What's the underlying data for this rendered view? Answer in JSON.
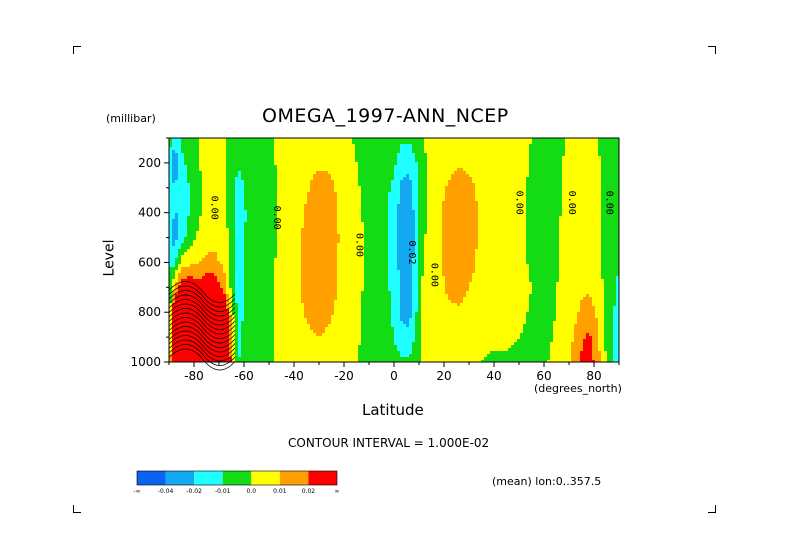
{
  "chart_data": {
    "type": "heatmap",
    "title": "OMEGA_1997-ANN_NCEP",
    "ylabel": "Level",
    "yunits": "(millibar)",
    "xlabel": "Latitude",
    "xunits": "(degrees_north)",
    "xlim": [
      -90,
      90
    ],
    "ylim": [
      1000,
      100
    ],
    "y_axis_reversed": true,
    "x_ticks": [
      "-80",
      "-60",
      "-40",
      "-20",
      "0",
      "20",
      "40",
      "60",
      "80"
    ],
    "x_tick_values": [
      -80,
      -60,
      -40,
      -20,
      0,
      20,
      40,
      60,
      80
    ],
    "y_ticks": [
      "200",
      "400",
      "600",
      "800",
      "1000"
    ],
    "y_tick_values": [
      200,
      400,
      600,
      800,
      1000
    ],
    "contour_interval": "CONTOUR INTERVAL = 1.000E-02",
    "averaging_note": "(mean) lon:0..357.5",
    "colorbar": {
      "labels": [
        "-∞",
        "-0.04",
        "-0.02",
        "-0.01",
        "0.0",
        "0.01",
        "0.02",
        "∞"
      ],
      "colors": [
        "#0a64f0",
        "#13a8f0",
        "#20ffff",
        "#14dc14",
        "#ffff00",
        "#ffa000",
        "#ff0000"
      ]
    },
    "contour_labels": [
      {
        "text": "0.00",
        "lat": -73,
        "level": 380
      },
      {
        "text": "0.00",
        "lat": -48,
        "level": 420
      },
      {
        "text": "0.00",
        "lat": -15,
        "level": 530
      },
      {
        "text": "0.02",
        "lat": 6,
        "level": 560
      },
      {
        "text": "0.00",
        "lat": 15,
        "level": 650
      },
      {
        "text": "0.00",
        "lat": 49,
        "level": 360
      },
      {
        "text": "0.00",
        "lat": 70,
        "level": 360
      },
      {
        "text": "0.00",
        "lat": 85,
        "level": 360
      }
    ],
    "field_lat": [
      -90,
      -88,
      -85,
      -82,
      -78,
      -75,
      -72,
      -68,
      -65,
      -62,
      -58,
      -55,
      -50,
      -45,
      -40,
      -35,
      -30,
      -25,
      -20,
      -15,
      -10,
      -5,
      0,
      3,
      6,
      9,
      12,
      15,
      18,
      22,
      26,
      30,
      35,
      40,
      45,
      50,
      55,
      60,
      65,
      70,
      75,
      78,
      81,
      84,
      87,
      90
    ],
    "field_levels": [
      100,
      200,
      300,
      400,
      500,
      600,
      700,
      800,
      900,
      1000
    ],
    "field_values": [
      [
        -0.005,
        -0.007,
        -0.007,
        -0.01,
        -0.01,
        -0.01,
        -0.01,
        -0.01,
        -0.01,
        -0.01
      ],
      [
        -0.015,
        -0.03,
        -0.02,
        -0.02,
        -0.025,
        -0.015,
        0.01,
        0.03,
        0.05,
        0.06
      ],
      [
        -0.008,
        -0.012,
        -0.015,
        -0.02,
        -0.015,
        0.005,
        0.025,
        0.05,
        0.07,
        0.09
      ],
      [
        -0.005,
        -0.008,
        -0.01,
        -0.01,
        -0.005,
        0.007,
        0.03,
        0.06,
        0.08,
        0.1
      ],
      [
        0,
        -0.001,
        -0.002,
        -0.002,
        0.002,
        0.01,
        0.025,
        0.06,
        0.08,
        0.09
      ],
      [
        0.005,
        0.005,
        0.006,
        0.006,
        0.006,
        0.012,
        0.03,
        0.05,
        0.07,
        0.09
      ],
      [
        0.003,
        0.004,
        0.005,
        0.006,
        0.008,
        0.012,
        0.03,
        0.05,
        0.06,
        0.07
      ],
      [
        0.001,
        0.002,
        0.004,
        0.004,
        0.006,
        0.008,
        0.015,
        0.035,
        0.05,
        0.06
      ],
      [
        -0.003,
        -0.004,
        -0.006,
        -0.006,
        -0.006,
        -0.005,
        -0.003,
        0.005,
        0.01,
        0.015
      ],
      [
        -0.004,
        -0.008,
        -0.015,
        -0.02,
        -0.02,
        -0.02,
        -0.018,
        -0.015,
        -0.012,
        -0.01
      ],
      [
        -0.005,
        -0.005,
        -0.005,
        -0.005,
        -0.004,
        -0.003,
        -0.003,
        -0.003,
        -0.003,
        -0.003
      ],
      [
        -0.003,
        -0.003,
        -0.003,
        -0.002,
        -0.002,
        -0.002,
        -0.002,
        -0.003,
        -0.002,
        -0.001
      ],
      [
        -0.002,
        -0.002,
        -0.003,
        -0.003,
        -0.003,
        -0.003,
        -0.003,
        -0.003,
        -0.003,
        -0.001
      ],
      [
        0.003,
        0.002,
        0.001,
        0.001,
        0.002,
        0.003,
        0.003,
        0.003,
        0.003,
        0.002
      ],
      [
        0.007,
        0.006,
        0.005,
        0.006,
        0.007,
        0.007,
        0.007,
        0.007,
        0.006,
        0.005
      ],
      [
        0.009,
        0.008,
        0.009,
        0.011,
        0.012,
        0.012,
        0.012,
        0.011,
        0.008,
        0.006
      ],
      [
        0.009,
        0.009,
        0.013,
        0.017,
        0.019,
        0.019,
        0.018,
        0.016,
        0.01,
        0.006
      ],
      [
        0.008,
        0.009,
        0.011,
        0.013,
        0.014,
        0.013,
        0.013,
        0.011,
        0.007,
        0.005
      ],
      [
        0.005,
        0.006,
        0.007,
        0.007,
        0.007,
        0.007,
        0.006,
        0.006,
        0.004,
        0.003
      ],
      [
        -0.002,
        0,
        0.001,
        0.002,
        0.003,
        0.003,
        0.002,
        0.001,
        0.001,
        0
      ],
      [
        -0.003,
        -0.003,
        -0.003,
        -0.003,
        -0.002,
        -0.002,
        -0.002,
        -0.002,
        -0.002,
        -0.002
      ],
      [
        -0.003,
        -0.004,
        -0.005,
        -0.006,
        -0.006,
        -0.005,
        -0.005,
        -0.004,
        -0.003,
        -0.002
      ],
      [
        -0.005,
        -0.008,
        -0.012,
        -0.015,
        -0.014,
        -0.013,
        -0.013,
        -0.012,
        -0.01,
        -0.006
      ],
      [
        -0.008,
        -0.015,
        -0.022,
        -0.025,
        -0.026,
        -0.025,
        -0.024,
        -0.022,
        -0.017,
        -0.008
      ],
      [
        -0.008,
        -0.018,
        -0.024,
        -0.028,
        -0.03,
        -0.028,
        -0.026,
        -0.024,
        -0.018,
        -0.008
      ],
      [
        -0.005,
        -0.01,
        -0.013,
        -0.015,
        -0.015,
        -0.014,
        -0.012,
        -0.01,
        -0.007,
        -0.004
      ],
      [
        0.001,
        -0.002,
        -0.003,
        -0.002,
        -0.001,
        0.002,
        0.004,
        0.005,
        0.005,
        0.003
      ],
      [
        0.003,
        0.003,
        0.003,
        0.004,
        0.005,
        0.006,
        0.007,
        0.007,
        0.006,
        0.002
      ],
      [
        0.004,
        0.006,
        0.008,
        0.008,
        0.008,
        0.008,
        0.008,
        0.007,
        0.005,
        0.002
      ],
      [
        0.004,
        0.008,
        0.011,
        0.014,
        0.014,
        0.013,
        0.012,
        0.008,
        0.004,
        0.001
      ],
      [
        0.004,
        0.009,
        0.014,
        0.018,
        0.018,
        0.017,
        0.015,
        0.008,
        0.003,
        0.001
      ],
      [
        0.004,
        0.008,
        0.012,
        0.014,
        0.014,
        0.013,
        0.01,
        0.006,
        0.002,
        0.001
      ],
      [
        0.004,
        0.007,
        0.008,
        0.008,
        0.008,
        0.007,
        0.006,
        0.004,
        0.001,
        0
      ],
      [
        0.004,
        0.006,
        0.006,
        0.006,
        0.006,
        0.006,
        0.005,
        0.003,
        0.001,
        -0.001
      ],
      [
        0.003,
        0.005,
        0.005,
        0.005,
        0.005,
        0.005,
        0.004,
        0.003,
        0.001,
        -0.001
      ],
      [
        0.002,
        0.004,
        0.003,
        0.002,
        0.002,
        0.002,
        0.003,
        0.002,
        0,
        -0.002
      ],
      [
        0,
        -0.001,
        -0.002,
        -0.002,
        -0.001,
        -0.001,
        0,
        -0.001,
        -0.002,
        -0.002
      ],
      [
        -0.003,
        -0.004,
        -0.004,
        -0.004,
        -0.003,
        -0.003,
        -0.002,
        -0.002,
        -0.002,
        -0.001
      ],
      [
        -0.003,
        -0.003,
        -0.003,
        -0.002,
        -0.001,
        -0.001,
        0,
        0,
        0.001,
        0.002
      ],
      [
        0.001,
        0.003,
        0.004,
        0.004,
        0.004,
        0.003,
        0.003,
        0.004,
        0.006,
        0.008
      ],
      [
        0.002,
        0.005,
        0.006,
        0.006,
        0.007,
        0.007,
        0.008,
        0.012,
        0.018,
        0.022
      ],
      [
        0.001,
        0.004,
        0.005,
        0.005,
        0.006,
        0.007,
        0.009,
        0.014,
        0.022,
        0.027
      ],
      [
        0,
        0.002,
        0.003,
        0.003,
        0.003,
        0.004,
        0.006,
        0.009,
        0.014,
        0.016
      ],
      [
        -0.002,
        -0.002,
        -0.002,
        -0.002,
        -0.002,
        -0.002,
        -0.001,
        0,
        0.002,
        0.003
      ],
      [
        -0.004,
        -0.005,
        -0.005,
        -0.006,
        -0.007,
        -0.008,
        -0.008,
        -0.009,
        -0.01,
        -0.01
      ],
      [
        -0.005,
        -0.006,
        -0.006,
        -0.007,
        -0.008,
        -0.01,
        -0.011,
        -0.012,
        -0.013,
        -0.012
      ]
    ]
  }
}
